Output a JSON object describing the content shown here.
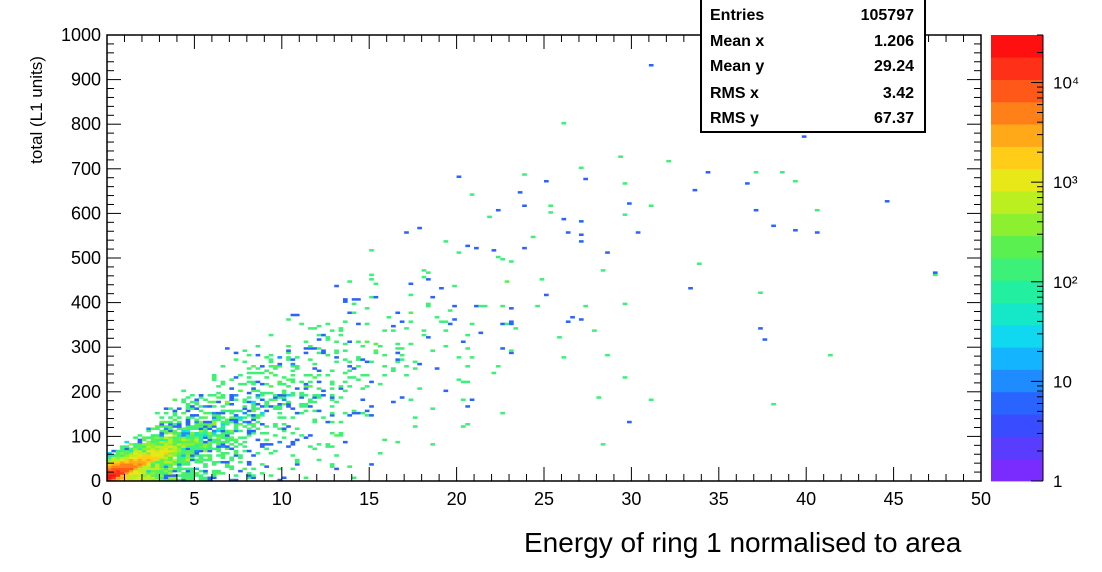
{
  "chart_data": {
    "type": "heatmap",
    "title": "",
    "xlabel": "Energy of ring 1 normalised to area",
    "ylabel": "total (L1 units)",
    "xlim": [
      0,
      50
    ],
    "ylim": [
      0,
      1000
    ],
    "x_ticks": [
      "0",
      "5",
      "10",
      "15",
      "20",
      "25",
      "30",
      "35",
      "40",
      "45",
      "50"
    ],
    "y_ticks": [
      "0",
      "100",
      "200",
      "300",
      "400",
      "500",
      "600",
      "700",
      "800",
      "900",
      "1000"
    ],
    "colorbar": {
      "scale": "log",
      "range": [
        1,
        30000
      ],
      "tick_values": [
        1,
        10,
        100,
        1000,
        10000
      ],
      "tick_labels": [
        "1",
        "10",
        "10²",
        "10³",
        "10⁴"
      ],
      "palette": [
        "#7a2cff",
        "#5a3cff",
        "#3a4cff",
        "#2a64ff",
        "#1e8cff",
        "#14b4ff",
        "#10d8f0",
        "#14e8c8",
        "#22f0a0",
        "#3cf078",
        "#5af050",
        "#8cf030",
        "#bcef20",
        "#e8e818",
        "#ffcc18",
        "#ffa818",
        "#ff8018",
        "#ff5818",
        "#ff3018",
        "#ff1010"
      ]
    },
    "stats": {
      "entries_label": "Entries",
      "entries": "105797",
      "mean_x_label": "Mean x",
      "mean_x": "1.206",
      "mean_y_label": "Mean y",
      "mean_y": "29.24",
      "rms_x_label": "RMS x",
      "rms_x": "3.42",
      "rms_y_label": "RMS y",
      "rms_y": "67.37"
    },
    "distribution": {
      "description_free": true,
      "trend_slope_per_unit_x": 17,
      "dense_core": [
        {
          "x": 0.5,
          "y": 10,
          "z": 20000
        },
        {
          "x": 2,
          "y": 40,
          "z": 300
        },
        {
          "x": 5,
          "y": 90,
          "z": 30
        },
        {
          "x": 10,
          "y": 180,
          "z": 5
        }
      ],
      "sparse_extent_x": [
        0,
        49
      ],
      "sparse_extent_y": [
        0,
        1000
      ]
    }
  }
}
